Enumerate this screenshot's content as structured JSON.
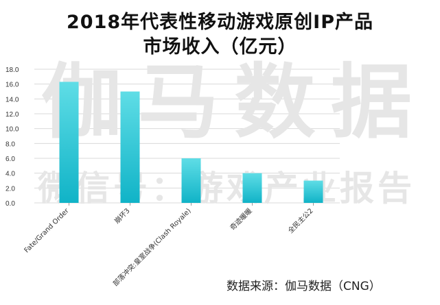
{
  "title_line1": "2018年代表性移动游戏原创IP产品",
  "title_line2": "市场收入（亿元）",
  "watermark_main": "伽马数据",
  "watermark_sub": "微信号：游戏产业报告",
  "source": "数据来源：伽马数据（CNG）",
  "colors": {
    "bar_top": "#5fdde6",
    "bar_bottom": "#10b3c7",
    "grid": "#d9d9d9"
  },
  "chart_data": {
    "type": "bar",
    "title": "2018年代表性移动游戏原创IP产品市场收入（亿元）",
    "categories": [
      "Fate/Grand Order",
      "崩坏3",
      "部落冲突:皇室战争(Clash Royale)",
      "奇迹暖暖",
      "全民主公2"
    ],
    "values": [
      16.3,
      15.0,
      6.0,
      4.0,
      3.0
    ],
    "ylim": [
      0,
      18
    ],
    "yticks": [
      "0.0",
      "2.0",
      "4.0",
      "6.0",
      "8.0",
      "10.0",
      "12.0",
      "14.0",
      "16.0",
      "18.0"
    ],
    "grid": true,
    "legend": "none"
  }
}
